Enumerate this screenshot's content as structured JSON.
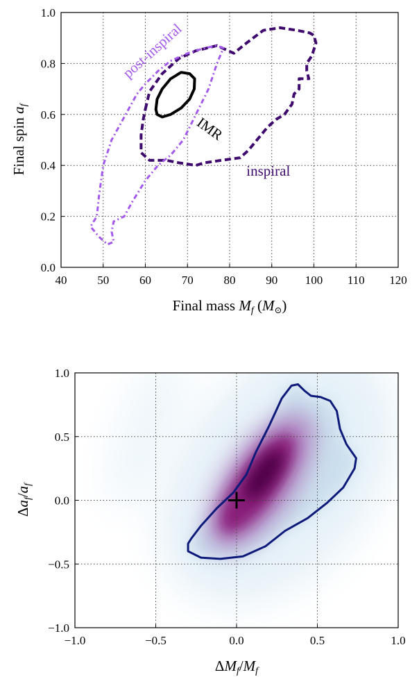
{
  "chart_data": [
    {
      "type": "contour",
      "xlabel": "Final mass M_f (M_⊙)",
      "ylabel": "Final spin a_f",
      "xlim": [
        40,
        120
      ],
      "ylim": [
        0.0,
        1.0
      ],
      "xticks": [
        "40",
        "50",
        "60",
        "70",
        "80",
        "90",
        "100",
        "110",
        "120"
      ],
      "yticks": [
        "0.0",
        "0.2",
        "0.4",
        "0.6",
        "0.8",
        "1.0"
      ],
      "grid": true,
      "series": [
        {
          "name": "inspiral",
          "color": "#3f0a6e",
          "style": "dashed",
          "points": [
            [
              60,
              0.62
            ],
            [
              61,
              0.69
            ],
            [
              64,
              0.76
            ],
            [
              68,
              0.82
            ],
            [
              72,
              0.85
            ],
            [
              77,
              0.87
            ],
            [
              81,
              0.84
            ],
            [
              84,
              0.88
            ],
            [
              88,
              0.93
            ],
            [
              92,
              0.94
            ],
            [
              96,
              0.93
            ],
            [
              99,
              0.92
            ],
            [
              100,
              0.91
            ],
            [
              100.5,
              0.88
            ],
            [
              99.5,
              0.83
            ],
            [
              98.3,
              0.8
            ],
            [
              98.3,
              0.77
            ],
            [
              98.8,
              0.74
            ],
            [
              96.5,
              0.74
            ],
            [
              96.5,
              0.7
            ],
            [
              95.3,
              0.68
            ],
            [
              94.8,
              0.64
            ],
            [
              93,
              0.6
            ],
            [
              91,
              0.58
            ],
            [
              89,
              0.55
            ],
            [
              86,
              0.49
            ],
            [
              84.5,
              0.46
            ],
            [
              82.5,
              0.43
            ],
            [
              78,
              0.42
            ],
            [
              74,
              0.41
            ],
            [
              72,
              0.4
            ],
            [
              68,
              0.41
            ],
            [
              65,
              0.42
            ],
            [
              61,
              0.42
            ],
            [
              59,
              0.45
            ],
            [
              59,
              0.52
            ],
            [
              59.5,
              0.58
            ],
            [
              60,
              0.62
            ]
          ],
          "label_at": [
            84,
            0.36
          ]
        },
        {
          "name": "post-inspiral",
          "color": "#a259ec",
          "style": "dashdot",
          "points": [
            [
              52,
              0.14
            ],
            [
              52.5,
              0.1
            ],
            [
              51,
              0.09
            ],
            [
              49,
              0.12
            ],
            [
              47,
              0.16
            ],
            [
              48.5,
              0.2
            ],
            [
              49,
              0.28
            ],
            [
              50,
              0.4
            ],
            [
              52,
              0.5
            ],
            [
              54,
              0.56
            ],
            [
              56,
              0.62
            ],
            [
              58,
              0.68
            ],
            [
              60,
              0.72
            ],
            [
              63,
              0.77
            ],
            [
              66,
              0.81
            ],
            [
              70,
              0.84
            ],
            [
              74,
              0.86
            ],
            [
              77,
              0.87
            ],
            [
              78.5,
              0.86
            ],
            [
              78,
              0.84
            ],
            [
              77,
              0.8
            ],
            [
              75,
              0.7
            ],
            [
              72,
              0.6
            ],
            [
              69,
              0.5
            ],
            [
              66,
              0.44
            ],
            [
              63,
              0.4
            ],
            [
              60,
              0.34
            ],
            [
              57,
              0.26
            ],
            [
              55,
              0.2
            ],
            [
              52.5,
              0.18
            ],
            [
              52,
              0.14
            ]
          ],
          "label_at": [
            56,
            0.74
          ]
        },
        {
          "name": "IMR",
          "color": "#000000",
          "style": "solid",
          "points": [
            [
              62.5,
              0.62
            ],
            [
              62.8,
              0.66
            ],
            [
              64,
              0.7
            ],
            [
              66,
              0.74
            ],
            [
              68.5,
              0.765
            ],
            [
              70.5,
              0.76
            ],
            [
              71.7,
              0.74
            ],
            [
              71.6,
              0.7
            ],
            [
              70.5,
              0.66
            ],
            [
              68.5,
              0.625
            ],
            [
              66,
              0.6
            ],
            [
              64,
              0.59
            ],
            [
              62.8,
              0.6
            ],
            [
              62.5,
              0.62
            ]
          ],
          "label_at": [
            72,
            0.56
          ]
        }
      ]
    },
    {
      "type": "heatmap",
      "xlabel": "ΔM_f/M_f",
      "ylabel": "Δa_f/a_f",
      "xlim": [
        -1.0,
        1.0
      ],
      "ylim": [
        -1.0,
        1.0
      ],
      "xticks": [
        "−1.0",
        "−0.5",
        "0.0",
        "0.5",
        "1.0"
      ],
      "yticks": [
        "−1.0",
        "−0.5",
        "0.0",
        "0.5",
        "1.0"
      ],
      "grid": true,
      "contour_color": "#0d1a7a",
      "contour": [
        [
          -0.28,
          -0.3
        ],
        [
          -0.22,
          -0.2
        ],
        [
          -0.12,
          -0.06
        ],
        [
          -0.02,
          0.06
        ],
        [
          0.06,
          0.2
        ],
        [
          0.12,
          0.38
        ],
        [
          0.2,
          0.58
        ],
        [
          0.28,
          0.8
        ],
        [
          0.34,
          0.9
        ],
        [
          0.38,
          0.91
        ],
        [
          0.42,
          0.86
        ],
        [
          0.46,
          0.82
        ],
        [
          0.52,
          0.81
        ],
        [
          0.58,
          0.78
        ],
        [
          0.62,
          0.7
        ],
        [
          0.64,
          0.56
        ],
        [
          0.68,
          0.44
        ],
        [
          0.74,
          0.33
        ],
        [
          0.73,
          0.25
        ],
        [
          0.66,
          0.1
        ],
        [
          0.56,
          -0.02
        ],
        [
          0.44,
          -0.14
        ],
        [
          0.3,
          -0.24
        ],
        [
          0.18,
          -0.36
        ],
        [
          0.04,
          -0.44
        ],
        [
          -0.1,
          -0.46
        ],
        [
          -0.22,
          -0.45
        ],
        [
          -0.3,
          -0.4
        ],
        [
          -0.3,
          -0.34
        ],
        [
          -0.28,
          -0.3
        ]
      ],
      "marker": {
        "x": 0.0,
        "y": 0.0,
        "symbol": "+",
        "color": "#000000"
      },
      "density_peak": [
        0.15,
        0.15
      ],
      "colormap": "BuPu"
    }
  ]
}
